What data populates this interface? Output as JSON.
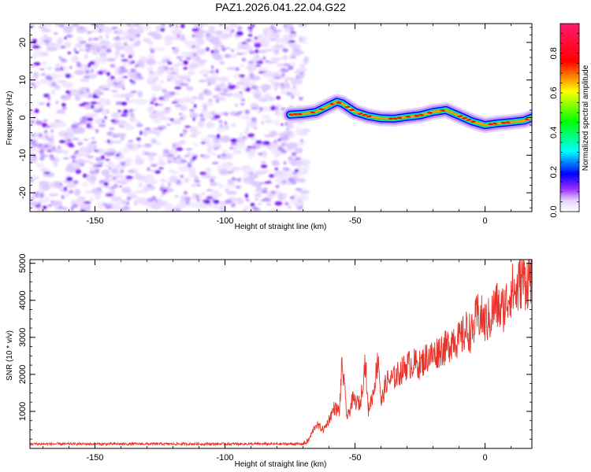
{
  "title": "PAZ1.2026.041.22.04.G22",
  "chart_data": [
    {
      "type": "heatmap",
      "xlabel": "Height of straight line (km)",
      "ylabel": "Frequency (Hz)",
      "xlim": [
        -175,
        18
      ],
      "ylim": [
        -25,
        25
      ],
      "xticks": [
        -150,
        -100,
        -50,
        0
      ],
      "yticks": [
        -20,
        -10,
        0,
        10,
        20
      ],
      "noise_region_x": [
        -175,
        -70
      ],
      "signal_trace": {
        "x": [
          -75,
          -70,
          -65,
          -60,
          -57,
          -55,
          -50,
          -45,
          -40,
          -35,
          -30,
          -25,
          -20,
          -15,
          -10,
          -5,
          0,
          5,
          10,
          15,
          18
        ],
        "y": [
          0.8,
          1.0,
          1.5,
          3.2,
          4.2,
          3.8,
          1.5,
          0.4,
          -0.2,
          -0.3,
          0.2,
          0.6,
          1.5,
          2.0,
          0.5,
          -1.0,
          -2.0,
          -1.5,
          -1.2,
          -0.8,
          0.0
        ]
      },
      "colorbar": {
        "label": "Normalized spectral amplitude",
        "range": [
          0.0,
          0.95
        ],
        "ticks": [
          "0.0",
          "0.2",
          "0.4",
          "0.6",
          "0.8"
        ]
      }
    },
    {
      "type": "line",
      "xlabel": "Height of straight line (km)",
      "ylabel": "SNR (10 * v/v)",
      "xlim": [
        -175,
        18
      ],
      "ylim": [
        0,
        5100
      ],
      "xticks": [
        -150,
        -100,
        -50,
        0
      ],
      "yticks": [
        1000,
        2000,
        3000,
        4000,
        5000
      ],
      "series": [
        {
          "name": "SNR",
          "color": "#e8332a",
          "x": [
            -175,
            -70,
            -68,
            -65,
            -62,
            -60,
            -58,
            -56,
            -55,
            -53,
            -51,
            -48,
            -46,
            -45,
            -43,
            -41,
            -40,
            -38,
            -35,
            -32,
            -30,
            -27,
            -25,
            -22,
            -20,
            -17,
            -15,
            -12,
            -10,
            -7,
            -5,
            -3,
            -1,
            0,
            2,
            4,
            6,
            8,
            10,
            12,
            14,
            16,
            18
          ],
          "y": [
            120,
            120,
            200,
            650,
            500,
            780,
            1100,
            1000,
            2300,
            800,
            1300,
            1200,
            2400,
            1000,
            1500,
            2500,
            1200,
            1800,
            1900,
            2100,
            2250,
            2300,
            2250,
            2500,
            2500,
            2700,
            2700,
            3000,
            2900,
            3200,
            3100,
            3600,
            3500,
            3400,
            3500,
            3900,
            3700,
            3900,
            4300,
            4200,
            4600,
            4500,
            4800
          ]
        }
      ]
    }
  ]
}
